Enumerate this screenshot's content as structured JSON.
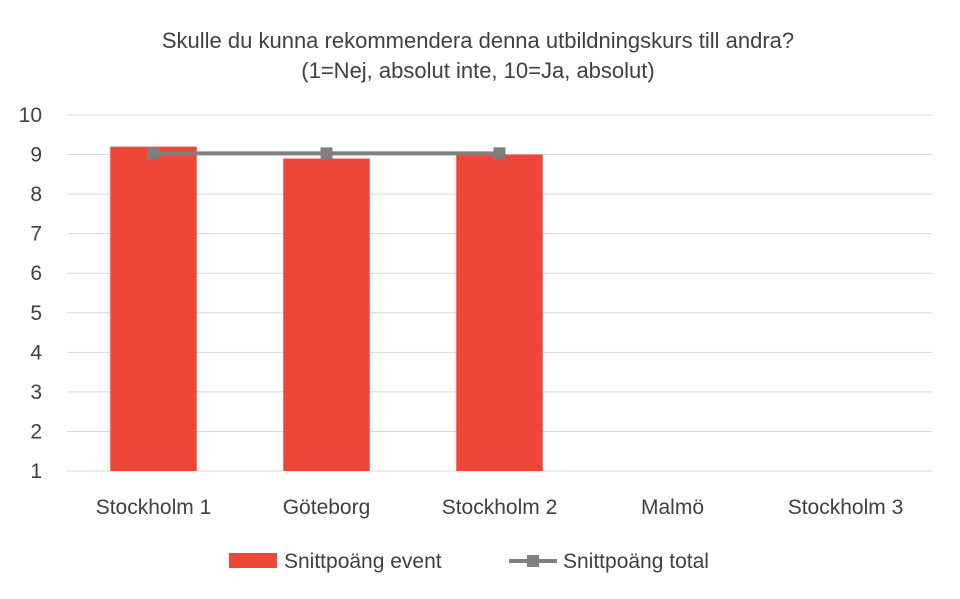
{
  "chart_data": {
    "type": "bar",
    "title": [
      "Skulle du kunna rekommendera denna utbildningskurs till andra?",
      "(1=Nej, absolut inte, 10=Ja, absolut)"
    ],
    "categories": [
      "Stockholm 1",
      "Göteborg",
      "Stockholm 2",
      "Malmö",
      "Stockholm 3"
    ],
    "yticks": [
      "1",
      "2",
      "3",
      "4",
      "5",
      "6",
      "7",
      "8",
      "9",
      "10"
    ],
    "ylim": [
      1,
      10
    ],
    "grid": true,
    "legend_position": "bottom",
    "series": [
      {
        "name": "Snittpoäng event",
        "kind": "bar",
        "color": "#EF4638",
        "values": [
          9.2,
          8.9,
          9.0,
          null,
          null
        ]
      },
      {
        "name": "Snittpoäng total",
        "kind": "line",
        "marker": "square",
        "color": "#7F7F7F",
        "values": [
          9.03,
          9.03,
          9.03,
          null,
          null
        ]
      }
    ]
  }
}
